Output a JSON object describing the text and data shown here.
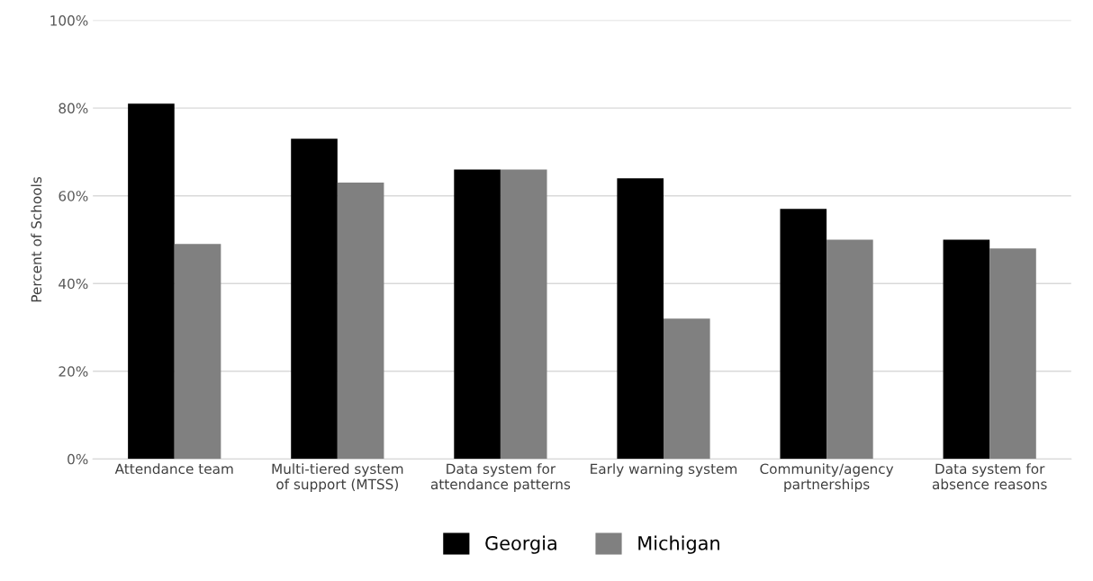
{
  "chart_data": {
    "type": "bar",
    "ylabel": "Percent of Schools",
    "categories": [
      "Attendance team",
      "Multi-tiered system\nof support (MTSS)",
      "Data system for\nattendance patterns",
      "Early warning system",
      "Community/agency\npartnerships",
      "Data system for\nabsence reasons"
    ],
    "series": [
      {
        "name": "Georgia",
        "color": "#000000",
        "values": [
          81,
          73,
          66,
          64,
          57,
          50
        ]
      },
      {
        "name": "Michigan",
        "color": "#808080",
        "values": [
          49,
          63,
          66,
          32,
          50,
          48
        ]
      }
    ],
    "ylim": [
      0,
      100
    ],
    "yticks": [
      {
        "value": 0,
        "label": "0%"
      },
      {
        "value": 20,
        "label": "20%"
      },
      {
        "value": 40,
        "label": "40%"
      },
      {
        "value": 60,
        "label": "60%"
      },
      {
        "value": 80,
        "label": "80%"
      },
      {
        "value": 100,
        "label": "100%"
      }
    ],
    "grid": "y",
    "legend": "bottom"
  }
}
